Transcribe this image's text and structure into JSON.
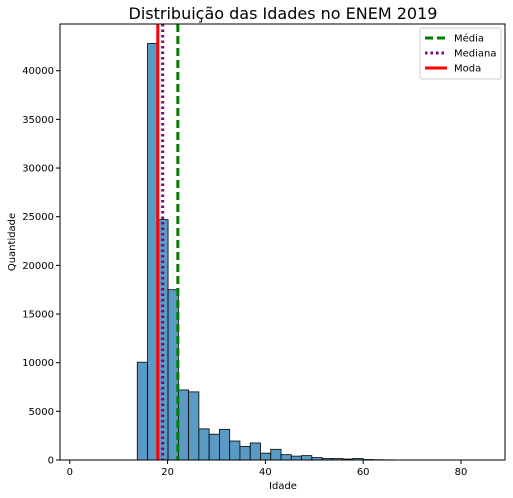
{
  "chart_data": {
    "type": "bar",
    "title": "Distribuição das Idades no ENEM 2019",
    "xlabel": "Idade",
    "ylabel": "Quantidade",
    "xlim": [
      -2,
      89
    ],
    "ylim": [
      0,
      44800
    ],
    "xticks": [
      0,
      20,
      40,
      60,
      80
    ],
    "yticks": [
      0,
      5000,
      10000,
      15000,
      20000,
      25000,
      30000,
      35000,
      40000
    ],
    "grid": false,
    "bin_width": 2.1,
    "bins": [
      {
        "x": 13.8,
        "count": 10050
      },
      {
        "x": 15.9,
        "count": 42800
      },
      {
        "x": 18.0,
        "count": 24700
      },
      {
        "x": 20.1,
        "count": 17500
      },
      {
        "x": 22.2,
        "count": 7200
      },
      {
        "x": 24.3,
        "count": 7000
      },
      {
        "x": 26.4,
        "count": 3200
      },
      {
        "x": 28.5,
        "count": 2650
      },
      {
        "x": 30.6,
        "count": 3150
      },
      {
        "x": 32.7,
        "count": 1950
      },
      {
        "x": 34.8,
        "count": 1400
      },
      {
        "x": 36.9,
        "count": 1750
      },
      {
        "x": 39.0,
        "count": 700
      },
      {
        "x": 41.1,
        "count": 1100
      },
      {
        "x": 43.2,
        "count": 550
      },
      {
        "x": 45.3,
        "count": 400
      },
      {
        "x": 47.4,
        "count": 450
      },
      {
        "x": 49.5,
        "count": 250
      },
      {
        "x": 51.6,
        "count": 150
      },
      {
        "x": 53.7,
        "count": 150
      },
      {
        "x": 55.8,
        "count": 100
      },
      {
        "x": 57.9,
        "count": 150
      },
      {
        "x": 60.0,
        "count": 50
      },
      {
        "x": 62.1,
        "count": 30
      },
      {
        "x": 64.2,
        "count": 20
      },
      {
        "x": 66.3,
        "count": 10
      },
      {
        "x": 68.4,
        "count": 5
      }
    ],
    "bar_color": "#5a9bc6",
    "reference_lines": [
      {
        "name": "Média",
        "x": 22.1,
        "color": "#007d00",
        "style": "dashed"
      },
      {
        "name": "Mediana",
        "x": 19.0,
        "color": "#800080",
        "style": "dotted"
      },
      {
        "name": "Moda",
        "x": 18.0,
        "color": "#ff0000",
        "style": "solid"
      }
    ],
    "legend_position": "top-right"
  }
}
